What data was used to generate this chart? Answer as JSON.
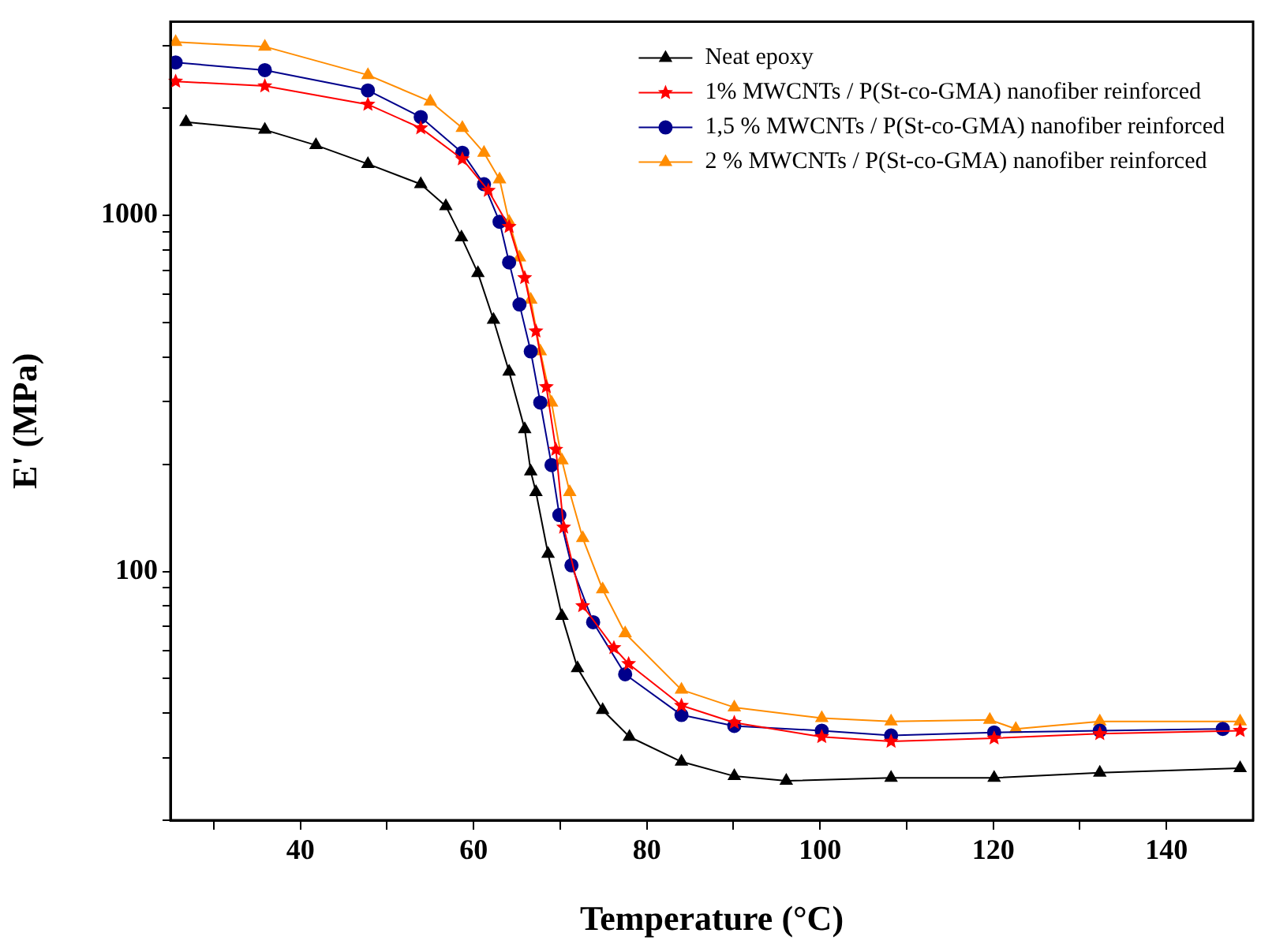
{
  "chart_data": {
    "type": "line",
    "xlabel": "Temperature (°C)",
    "ylabel": "E' (MPa)",
    "log": "y",
    "grid": false,
    "legend": "top right",
    "line_style": "solid",
    "xlim": [
      25,
      150
    ],
    "ylim": [
      20,
      3500
    ],
    "xticks": [
      {
        "value": 30,
        "label": null
      },
      40,
      {
        "value": 50,
        "label": null
      },
      60,
      {
        "value": 70,
        "label": null
      },
      80,
      {
        "value": 90,
        "label": null
      },
      100,
      {
        "value": 110,
        "label": null
      },
      120,
      {
        "value": 130,
        "label": null
      },
      140
    ],
    "yticks": [
      {
        "value": 20,
        "label": null
      },
      {
        "value": 30,
        "label": null
      },
      {
        "value": 40,
        "label": null
      },
      {
        "value": 50,
        "label": null
      },
      {
        "value": 60,
        "label": null
      },
      {
        "value": 70,
        "label": null
      },
      {
        "value": 80,
        "label": null
      },
      {
        "value": 90,
        "label": null
      },
      100,
      {
        "value": 200,
        "label": null
      },
      {
        "value": 300,
        "label": null
      },
      {
        "value": 400,
        "label": null
      },
      {
        "value": 500,
        "label": null
      },
      {
        "value": 600,
        "label": null
      },
      {
        "value": 700,
        "label": null
      },
      {
        "value": 800,
        "label": null
      },
      {
        "value": 900,
        "label": null
      },
      1000,
      {
        "value": 2000,
        "label": null
      },
      {
        "value": 3000,
        "label": null
      }
    ],
    "series": [
      {
        "name": "Neat epoxy",
        "color": "#000000",
        "marker": "triangle",
        "x": [
          26.8,
          35.9,
          41.8,
          47.8,
          53.9,
          56.8,
          58.6,
          60.5,
          62.3,
          64.1,
          65.9,
          66.6,
          67.2,
          68.6,
          70.2,
          72.0,
          74.9,
          78.0,
          84.0,
          90.1,
          96.1,
          108.2,
          120.1,
          132.3,
          148.5
        ],
        "values": [
          1830,
          1740,
          1575,
          1395,
          1224,
          1062,
          868,
          689,
          509,
          364,
          251,
          191,
          167,
          112,
          75,
          53.5,
          40.8,
          34.3,
          29.2,
          26.6,
          25.8,
          26.3,
          26.3,
          27.2,
          28.0
        ]
      },
      {
        "name": "1% MWCNTs / P(St-co-GMA) nanofiber reinforced",
        "color": "#ff0000",
        "marker": "star",
        "x": [
          25.6,
          35.9,
          47.8,
          53.9,
          58.7,
          61.7,
          64.1,
          65.9,
          67.2,
          68.4,
          69.5,
          70.4,
          72.6,
          76.2,
          77.9,
          84.0,
          90.1,
          100.2,
          108.2,
          120.1,
          132.3,
          148.5
        ],
        "values": [
          2380,
          2310,
          2050,
          1760,
          1440,
          1175,
          930,
          668,
          473,
          330,
          220,
          133,
          80,
          61,
          55,
          42,
          37.6,
          34.3,
          33.3,
          34,
          35,
          35.7
        ]
      },
      {
        "name": "1,5 % MWCNTs / P(St-co-GMA) nanofiber reinforced",
        "color": "#00008b",
        "marker": "circle",
        "x": [
          25.6,
          35.9,
          47.8,
          53.9,
          58.7,
          61.2,
          63.0,
          64.1,
          65.3,
          66.6,
          67.7,
          69.0,
          69.9,
          71.3,
          73.8,
          77.5,
          84.0,
          90.1,
          100.2,
          108.2,
          120.1,
          132.3,
          146.5
        ],
        "values": [
          2690,
          2560,
          2245,
          1890,
          1500,
          1224,
          960,
          738,
          562,
          415,
          298,
          199,
          144,
          104,
          72,
          51.4,
          39.5,
          36.8,
          35.7,
          34.6,
          35.3,
          35.7,
          36.1
        ]
      },
      {
        "name": "2 % MWCNTs / P(St-co-GMA) nanofiber reinforced",
        "color": "#ff8c00",
        "marker": "triangle",
        "x": [
          25.6,
          35.9,
          47.8,
          55.0,
          58.7,
          61.2,
          63.0,
          64.1,
          65.3,
          66.6,
          67.7,
          69.0,
          70.2,
          71.1,
          72.6,
          74.9,
          77.5,
          84.0,
          90.1,
          100.2,
          108.2,
          119.6,
          122.6,
          132.3,
          148.5
        ],
        "values": [
          3070,
          2980,
          2480,
          2090,
          1760,
          1500,
          1262,
          960,
          762,
          580,
          415,
          298,
          205,
          167,
          124,
          89,
          67,
          46.5,
          41.5,
          38.7,
          37.9,
          38.3,
          36.1,
          37.9,
          37.9
        ]
      }
    ]
  }
}
